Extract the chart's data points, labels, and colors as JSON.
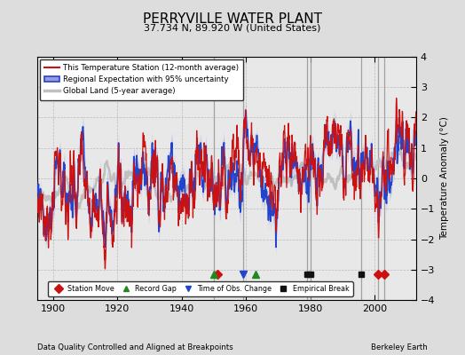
{
  "title": "PERRYVILLE WATER PLANT",
  "subtitle": "37.734 N, 89.920 W (United States)",
  "xlabel_note": "Data Quality Controlled and Aligned at Breakpoints",
  "credit": "Berkeley Earth",
  "ylim": [
    -4,
    4
  ],
  "xlim": [
    1895,
    2013
  ],
  "yticks": [
    -4,
    -3,
    -2,
    -1,
    0,
    1,
    2,
    3,
    4
  ],
  "xticks": [
    1900,
    1920,
    1940,
    1960,
    1980,
    2000
  ],
  "ylabel": "Temperature Anomaly (°C)",
  "bg_color": "#dddddd",
  "plot_bg_color": "#e8e8e8",
  "station_moves": [
    1951,
    2001,
    2003
  ],
  "record_gaps": [
    1950,
    1963
  ],
  "obs_changes": [
    1959
  ],
  "empirical_breaks": [
    1979,
    1980,
    1996
  ],
  "vertical_lines": [
    1950,
    1959,
    1979,
    1980,
    1996,
    2001,
    2003
  ]
}
